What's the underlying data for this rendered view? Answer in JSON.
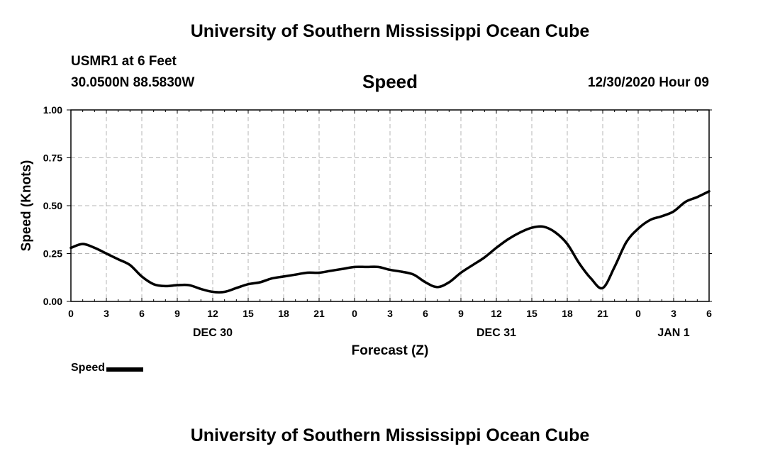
{
  "header": {
    "title": "University of Southern Mississippi Ocean Cube",
    "station": "USMR1 at 6 Feet",
    "coordinates": "30.0500N 88.5830W",
    "variable": "Speed",
    "datetime": "12/30/2020 Hour 09"
  },
  "footer": {
    "title": "University of Southern Mississippi Ocean Cube"
  },
  "legend": {
    "label": "Speed"
  },
  "chart_data": {
    "type": "line",
    "title": "Speed",
    "xlabel": "Forecast (Z)",
    "ylabel": "Speed (Knots)",
    "xlim": [
      0,
      54
    ],
    "ylim": [
      0,
      1.0
    ],
    "grid": true,
    "line_color": "#000000",
    "x_ticks": [
      0,
      3,
      6,
      9,
      12,
      15,
      18,
      21,
      24,
      27,
      30,
      33,
      36,
      39,
      42,
      45,
      48,
      51,
      54
    ],
    "x_tick_labels": [
      "0",
      "3",
      "6",
      "9",
      "12",
      "15",
      "18",
      "21",
      "0",
      "3",
      "6",
      "9",
      "12",
      "15",
      "18",
      "21",
      "0",
      "3",
      "6"
    ],
    "y_ticks": [
      0,
      0.25,
      0.5,
      0.75,
      1.0
    ],
    "y_tick_labels": [
      "0.00",
      "0.25",
      "0.50",
      "0.75",
      "1.00"
    ],
    "date_labels": [
      {
        "x": 12,
        "label": "DEC 30"
      },
      {
        "x": 36,
        "label": "DEC 31"
      },
      {
        "x": 51,
        "label": "JAN 1"
      }
    ],
    "series": [
      {
        "name": "Speed",
        "x": [
          0,
          1,
          2,
          3,
          4,
          5,
          6,
          7,
          8,
          9,
          10,
          11,
          12,
          13,
          14,
          15,
          16,
          17,
          18,
          19,
          20,
          21,
          22,
          23,
          24,
          25,
          26,
          27,
          28,
          29,
          30,
          31,
          32,
          33,
          34,
          35,
          36,
          37,
          38,
          39,
          40,
          41,
          42,
          43,
          44,
          45,
          46,
          47,
          48,
          49,
          50,
          51,
          52,
          53,
          54
        ],
        "values": [
          0.28,
          0.3,
          0.28,
          0.25,
          0.22,
          0.19,
          0.13,
          0.09,
          0.08,
          0.085,
          0.085,
          0.065,
          0.05,
          0.05,
          0.07,
          0.09,
          0.1,
          0.12,
          0.13,
          0.14,
          0.15,
          0.15,
          0.16,
          0.17,
          0.18,
          0.18,
          0.18,
          0.165,
          0.155,
          0.14,
          0.1,
          0.075,
          0.1,
          0.15,
          0.19,
          0.23,
          0.28,
          0.325,
          0.36,
          0.385,
          0.39,
          0.36,
          0.3,
          0.2,
          0.12,
          0.07,
          0.18,
          0.31,
          0.38,
          0.425,
          0.445,
          0.47,
          0.52,
          0.545,
          0.575
        ]
      }
    ]
  }
}
